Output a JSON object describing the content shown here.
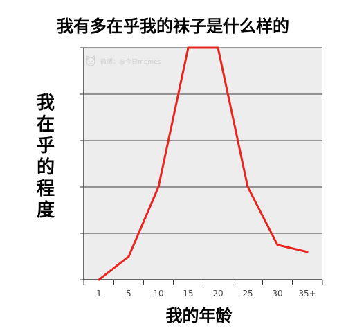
{
  "chart_data": {
    "type": "line",
    "title": "我有多在乎我的袜子是什么样的",
    "xlabel": "我的年龄",
    "ylabel": "我在乎的程度",
    "categories": [
      "1",
      "5",
      "10",
      "15",
      "20",
      "25",
      "30",
      "35+"
    ],
    "series": [
      {
        "values": [
          0,
          0.5,
          2,
          5,
          5,
          2,
          0.75,
          0.6
        ]
      }
    ],
    "ylim": [
      0,
      5
    ],
    "y_gridlines": [
      0,
      1,
      2,
      3,
      4,
      5
    ],
    "grid": true,
    "colors": {
      "line": "#e8261f",
      "plot_background": "#ededed",
      "gridline": "#3a3a3a",
      "axis": "#3a3a3a",
      "tick_label": "#444444"
    }
  },
  "watermark": {
    "text": "微博：@今日memes",
    "icon": "cat-face-icon"
  }
}
